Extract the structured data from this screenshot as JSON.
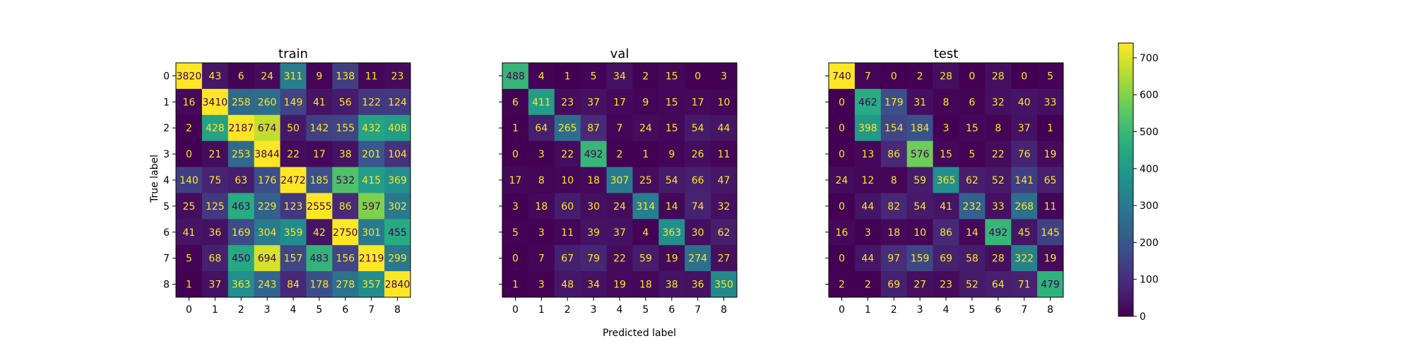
{
  "chart_data": {
    "type": "heatmap",
    "xlabel": "Predicted label",
    "ylabel": "True label",
    "labels": [
      "0",
      "1",
      "2",
      "3",
      "4",
      "5",
      "6",
      "7",
      "8"
    ],
    "colorbar": {
      "min": 0,
      "max": 740,
      "ticks": [
        0,
        100,
        200,
        300,
        400,
        500,
        600,
        700
      ],
      "colormap": "viridis"
    },
    "panels": [
      {
        "title": "train",
        "matrix": [
          [
            3820,
            43,
            6,
            24,
            311,
            9,
            138,
            11,
            23
          ],
          [
            16,
            3410,
            258,
            260,
            149,
            41,
            56,
            122,
            124
          ],
          [
            2,
            428,
            2187,
            674,
            50,
            142,
            155,
            432,
            408
          ],
          [
            0,
            21,
            253,
            3844,
            22,
            17,
            38,
            201,
            104
          ],
          [
            140,
            75,
            63,
            176,
            2472,
            185,
            532,
            415,
            369
          ],
          [
            25,
            125,
            463,
            229,
            123,
            2555,
            86,
            597,
            302
          ],
          [
            41,
            36,
            169,
            304,
            359,
            42,
            2750,
            301,
            455
          ],
          [
            5,
            68,
            450,
            694,
            157,
            483,
            156,
            2119,
            299
          ],
          [
            1,
            37,
            363,
            243,
            84,
            178,
            278,
            357,
            2840
          ]
        ]
      },
      {
        "title": "val",
        "matrix": [
          [
            488,
            4,
            1,
            5,
            34,
            2,
            15,
            0,
            3
          ],
          [
            6,
            411,
            23,
            37,
            17,
            9,
            15,
            17,
            10
          ],
          [
            1,
            64,
            265,
            87,
            7,
            24,
            15,
            54,
            44
          ],
          [
            0,
            3,
            22,
            492,
            2,
            1,
            9,
            26,
            11
          ],
          [
            17,
            8,
            10,
            18,
            307,
            25,
            54,
            66,
            47
          ],
          [
            3,
            18,
            60,
            30,
            24,
            314,
            14,
            74,
            32
          ],
          [
            5,
            3,
            11,
            39,
            37,
            4,
            363,
            30,
            62
          ],
          [
            0,
            7,
            67,
            79,
            22,
            59,
            19,
            274,
            27
          ],
          [
            1,
            3,
            48,
            34,
            19,
            18,
            38,
            36,
            350
          ]
        ]
      },
      {
        "title": "test",
        "matrix": [
          [
            740,
            7,
            0,
            2,
            28,
            0,
            28,
            0,
            5
          ],
          [
            0,
            462,
            179,
            31,
            8,
            6,
            32,
            40,
            33
          ],
          [
            0,
            398,
            154,
            184,
            3,
            15,
            8,
            37,
            1
          ],
          [
            0,
            13,
            86,
            576,
            15,
            5,
            22,
            76,
            19
          ],
          [
            24,
            12,
            8,
            59,
            365,
            62,
            52,
            141,
            65
          ],
          [
            0,
            44,
            82,
            54,
            41,
            232,
            33,
            268,
            11
          ],
          [
            16,
            3,
            18,
            10,
            86,
            14,
            492,
            45,
            145
          ],
          [
            0,
            44,
            97,
            159,
            69,
            58,
            28,
            322,
            19
          ],
          [
            2,
            2,
            69,
            27,
            23,
            52,
            64,
            71,
            479
          ]
        ]
      }
    ]
  }
}
